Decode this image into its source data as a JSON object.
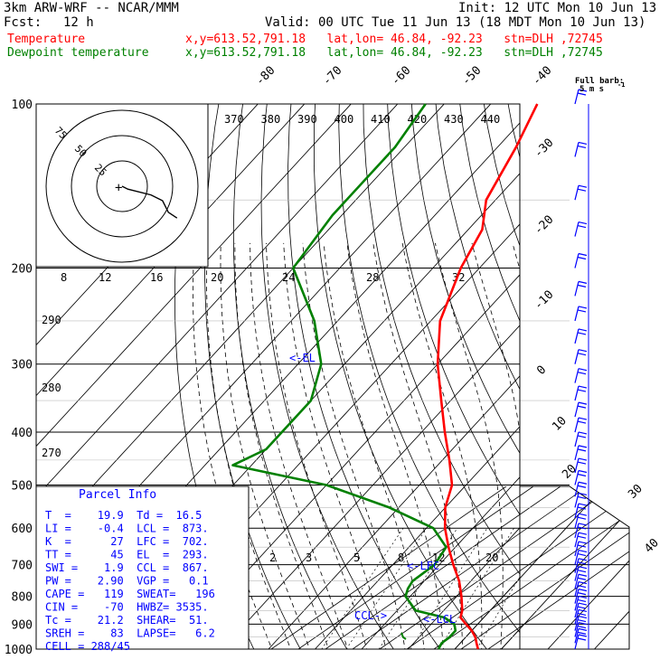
{
  "header": {
    "model": "3km ARW-WRF -- NCAR/MMM",
    "init": "Init: 12 UTC Mon 10 Jun 13",
    "fcst_label": "Fcst:",
    "fcst_value": "12 h",
    "valid": "Valid: 00 UTC Tue 11 Jun 13 (18 MDT Mon 10 Jun 13)",
    "temp_label": "Temperature",
    "temp_info": "x,y=613.52,791.18   lat,lon= 46.84, -92.23   stn=DLH ,72745",
    "dew_label": "Dewpoint temperature",
    "dew_info": "x,y=613.52,791.18   lat,lon= 46.84, -92.23   stn=DLH ,72745",
    "barb_title_1": "Full barb:",
    "barb_title_2": "5 m s",
    "barb_title_3": "-1"
  },
  "colors": {
    "temperature": "#ff0000",
    "dewpoint": "#008000",
    "parcel_info": "#0000ff"
  },
  "chart_data": {
    "type": "line",
    "title": "",
    "y_axis": "pressure (hPa), log scale",
    "ylim": [
      1000,
      100
    ],
    "pressure_labels": [
      "100",
      "200",
      "300",
      "400",
      "500",
      "600",
      "700",
      "800",
      "900",
      "1000"
    ],
    "isotherm_labels": [
      "-80",
      "-70",
      "-60",
      "-50",
      "-40",
      "-30",
      "-20",
      "-10",
      "0",
      "10",
      "20",
      "30",
      "40"
    ],
    "theta_labels": [
      "370",
      "380",
      "390",
      "400",
      "410",
      "420",
      "430",
      "440"
    ],
    "theta_e_labels": [
      "290",
      "280",
      "270"
    ],
    "mixing_ratio_labels": [
      "8",
      "12",
      "16",
      "20",
      "24",
      "28",
      "32"
    ],
    "mixing_ratio_labels_low": [
      "2",
      "3",
      "5",
      "8",
      "12",
      "20"
    ],
    "series": [
      {
        "name": "Temperature",
        "points": [
          {
            "p": 1000,
            "t": 25.0
          },
          {
            "p": 975,
            "t": 23.5
          },
          {
            "p": 950,
            "t": 22.0
          },
          {
            "p": 925,
            "t": 20.0
          },
          {
            "p": 900,
            "t": 17.5
          },
          {
            "p": 875,
            "t": 15.0
          },
          {
            "p": 850,
            "t": 14.0
          },
          {
            "p": 800,
            "t": 11.0
          },
          {
            "p": 750,
            "t": 7.5
          },
          {
            "p": 700,
            "t": 3.0
          },
          {
            "p": 650,
            "t": -1.5
          },
          {
            "p": 600,
            "t": -6.0
          },
          {
            "p": 550,
            "t": -10.0
          },
          {
            "p": 500,
            "t": -13.0
          },
          {
            "p": 450,
            "t": -18.5
          },
          {
            "p": 400,
            "t": -25.0
          },
          {
            "p": 350,
            "t": -32.0
          },
          {
            "p": 300,
            "t": -40.0
          },
          {
            "p": 250,
            "t": -48.0
          },
          {
            "p": 200,
            "t": -54.0
          },
          {
            "p": 170,
            "t": -57.0
          },
          {
            "p": 150,
            "t": -62.0
          },
          {
            "p": 120,
            "t": -66.0
          },
          {
            "p": 100,
            "t": -70.0
          }
        ]
      },
      {
        "name": "Dewpoint temperature",
        "points": [
          {
            "p": 1000,
            "t": 16.5
          },
          {
            "p": 975,
            "t": 16.0
          },
          {
            "p": 950,
            "t": 16.5
          },
          {
            "p": 925,
            "t": 16.5
          },
          {
            "p": 900,
            "t": 15.0
          },
          {
            "p": 875,
            "t": 11.5
          },
          {
            "p": 850,
            "t": 4.0
          },
          {
            "p": 800,
            "t": -1.0
          },
          {
            "p": 775,
            "t": -2.0
          },
          {
            "p": 750,
            "t": -2.5
          },
          {
            "p": 700,
            "t": -1.0
          },
          {
            "p": 650,
            "t": -2.0
          },
          {
            "p": 600,
            "t": -8.5
          },
          {
            "p": 550,
            "t": -22.0
          },
          {
            "p": 500,
            "t": -40.0
          },
          {
            "p": 460,
            "t": -64.0
          },
          {
            "p": 430,
            "t": -60.0
          },
          {
            "p": 400,
            "t": -60.0
          },
          {
            "p": 350,
            "t": -60.0
          },
          {
            "p": 300,
            "t": -65.0
          },
          {
            "p": 250,
            "t": -75.0
          },
          {
            "p": 200,
            "t": -90.0
          },
          {
            "p": 160,
            "t": -92.0
          },
          {
            "p": 120,
            "t": -92.0
          },
          {
            "p": 100,
            "t": -94.0
          }
        ]
      }
    ],
    "annotations": [
      {
        "text": "<-EL",
        "p": 293
      },
      {
        "text": "<-LFC",
        "p": 702
      },
      {
        "text": "<-LCL",
        "p": 873
      },
      {
        "text": "CCL->",
        "p": 867
      }
    ],
    "hodograph": {
      "units": "kts",
      "ring_labels": [
        "75",
        "50",
        "25"
      ],
      "points": [
        [
          0,
          0
        ],
        [
          2,
          -1
        ],
        [
          10,
          -3
        ],
        [
          14,
          -5
        ],
        [
          16,
          -9
        ],
        [
          19,
          -11
        ]
      ]
    },
    "wind_barb_levels": [
      1000,
      975,
      950,
      925,
      900,
      875,
      850,
      825,
      800,
      775,
      750,
      725,
      700,
      675,
      650,
      625,
      600,
      575,
      550,
      525,
      500,
      475,
      450,
      425,
      400,
      375,
      350,
      325,
      300,
      275,
      250,
      225,
      200,
      175,
      150,
      125,
      100
    ]
  },
  "parcel_info": {
    "title": "Parcel Info",
    "rows": [
      "T  =    19.9  Td =  16.5",
      "LI =    -0.4  LCL =  873.",
      "K  =      27  LFC =  702.",
      "TT =      45  EL  =  293.",
      "SWI =    1.9  CCL =  867.",
      "PW =    2.90  VGP =   0.1",
      "CAPE =   119  SWEAT=   196",
      "CIN =    -70  HWBZ= 3535.",
      "Tc =    21.2  SHEAR=  51.",
      "SREH =    83  LAPSE=   6.2",
      "CELL = 288/45"
    ]
  }
}
